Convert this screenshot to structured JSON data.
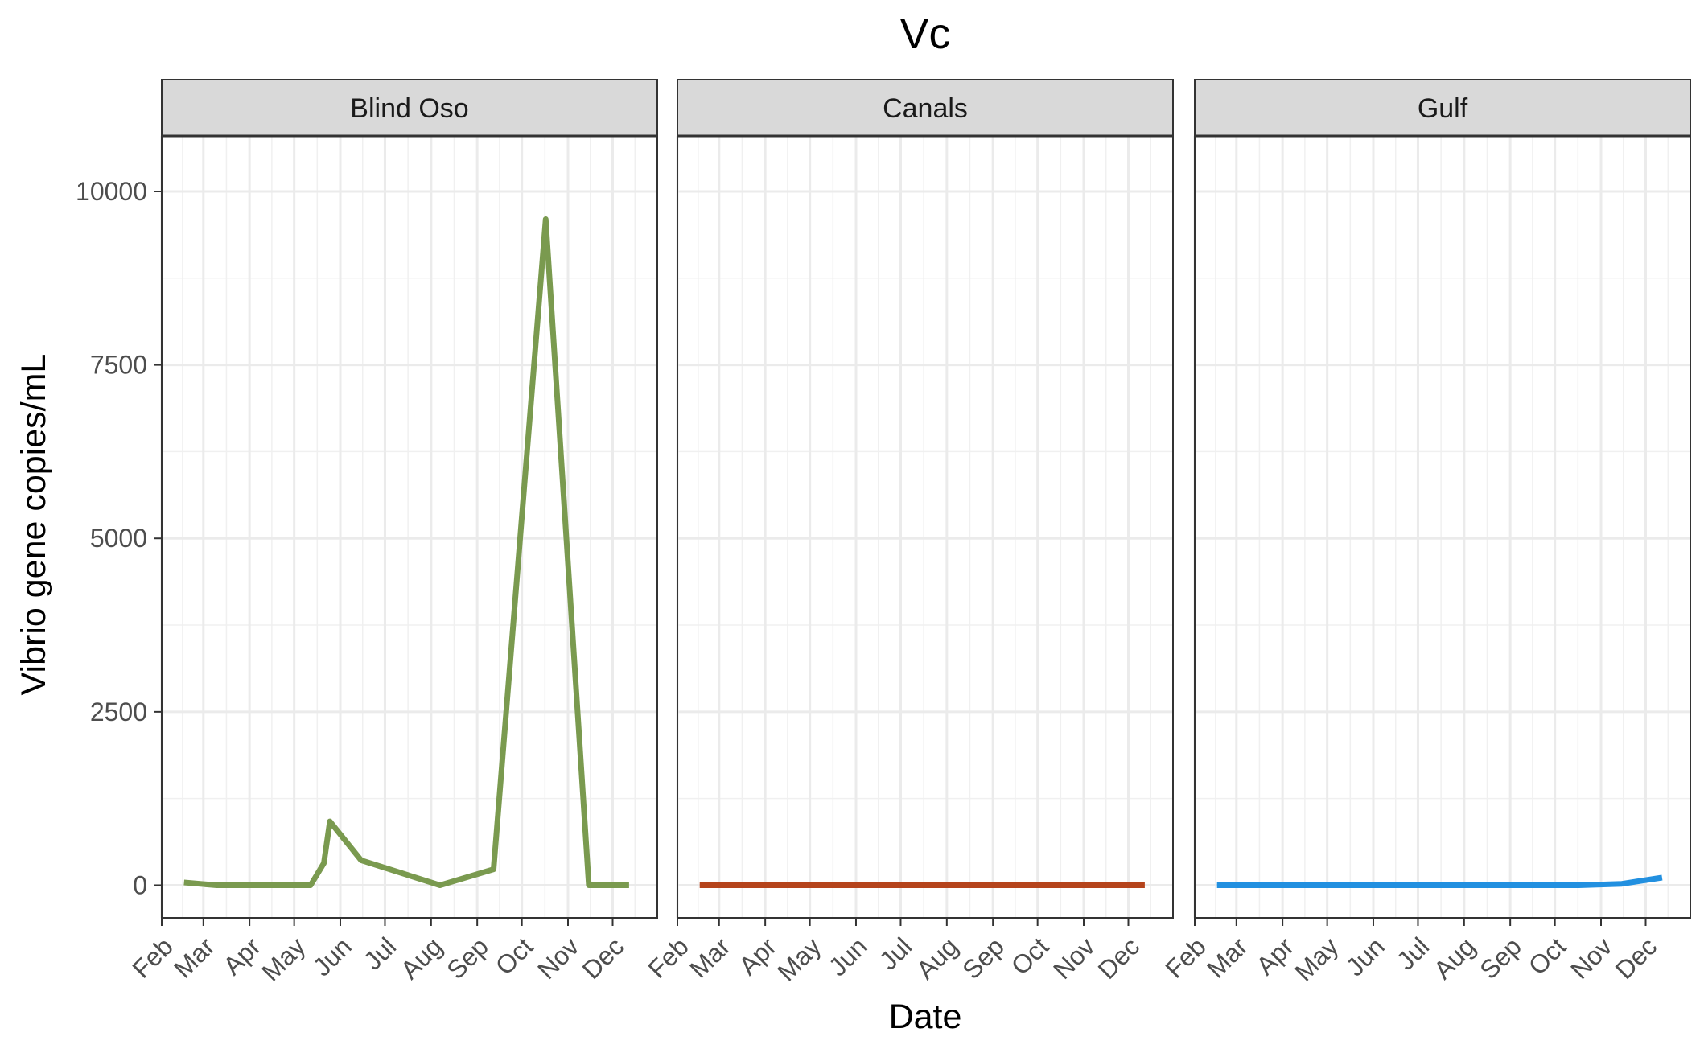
{
  "chart_data": {
    "type": "line",
    "title": "Vc",
    "xlabel": "Date",
    "ylabel": "Vibrio gene copies/mL",
    "ylim": [
      -470,
      10800
    ],
    "yticks": [
      0,
      2500,
      5000,
      7500,
      10000
    ],
    "xlim": [
      "2021-02-01",
      "2021-12-31"
    ],
    "xticks": [
      {
        "date": "2021-02-01",
        "label": "Feb"
      },
      {
        "date": "2021-03-01",
        "label": "Mar"
      },
      {
        "date": "2021-04-01",
        "label": "Apr"
      },
      {
        "date": "2021-05-01",
        "label": "May"
      },
      {
        "date": "2021-06-01",
        "label": "Jun"
      },
      {
        "date": "2021-07-01",
        "label": "Jul"
      },
      {
        "date": "2021-08-01",
        "label": "Aug"
      },
      {
        "date": "2021-09-01",
        "label": "Sep"
      },
      {
        "date": "2021-10-01",
        "label": "Oct"
      },
      {
        "date": "2021-11-01",
        "label": "Nov"
      },
      {
        "date": "2021-12-01",
        "label": "Dec"
      }
    ],
    "grid": true,
    "legend": "none",
    "panels": [
      {
        "name": "Blind Oso",
        "color": "#7a9a4f",
        "points": [
          {
            "x": "2021-02-16",
            "y": 40
          },
          {
            "x": "2021-03-10",
            "y": 0
          },
          {
            "x": "2021-05-12",
            "y": 0
          },
          {
            "x": "2021-05-21",
            "y": 320
          },
          {
            "x": "2021-05-25",
            "y": 920
          },
          {
            "x": "2021-06-15",
            "y": 360
          },
          {
            "x": "2021-08-07",
            "y": 0
          },
          {
            "x": "2021-09-12",
            "y": 230
          },
          {
            "x": "2021-10-17",
            "y": 9600
          },
          {
            "x": "2021-11-15",
            "y": 0
          },
          {
            "x": "2021-12-12",
            "y": 0
          }
        ]
      },
      {
        "name": "Canals",
        "color": "#b5441c",
        "points": [
          {
            "x": "2021-02-16",
            "y": 0
          },
          {
            "x": "2021-12-12",
            "y": 0
          }
        ]
      },
      {
        "name": "Gulf",
        "color": "#2290e0",
        "points": [
          {
            "x": "2021-02-16",
            "y": 0
          },
          {
            "x": "2021-10-17",
            "y": 0
          },
          {
            "x": "2021-11-15",
            "y": 20
          },
          {
            "x": "2021-12-12",
            "y": 110
          }
        ]
      }
    ]
  }
}
